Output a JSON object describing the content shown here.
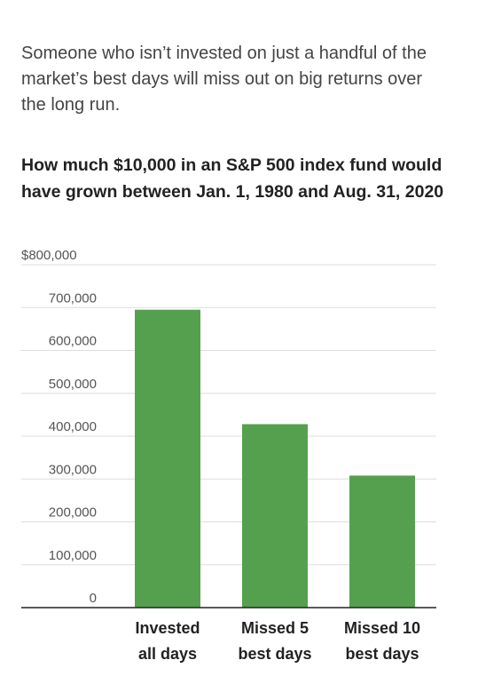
{
  "subtitle": "Someone who isn’t invested on just a handful of the market’s best days will miss out on big returns over the long run.",
  "chart_data": {
    "type": "bar",
    "title": "How much $10,000 in an S&P 500 index fund would have grown between Jan. 1, 1980 and Aug. 31, 2020",
    "categories": [
      [
        "Invested",
        "all days"
      ],
      [
        "Missed 5",
        "best days"
      ],
      [
        "Missed 10",
        "best days"
      ]
    ],
    "values": [
      695000,
      428000,
      308000
    ],
    "ylim": [
      0,
      800000
    ],
    "yticks": [
      0,
      100000,
      200000,
      300000,
      400000,
      500000,
      600000,
      700000,
      800000
    ],
    "ytick_labels": [
      "0",
      "100,000",
      "200,000",
      "300,000",
      "400,000",
      "500,000",
      "600,000",
      "700,000",
      "$800,000"
    ],
    "grid": true,
    "colors": {
      "bar": "#55a04e",
      "grid": "#dddddd",
      "axis": "#222222"
    }
  }
}
